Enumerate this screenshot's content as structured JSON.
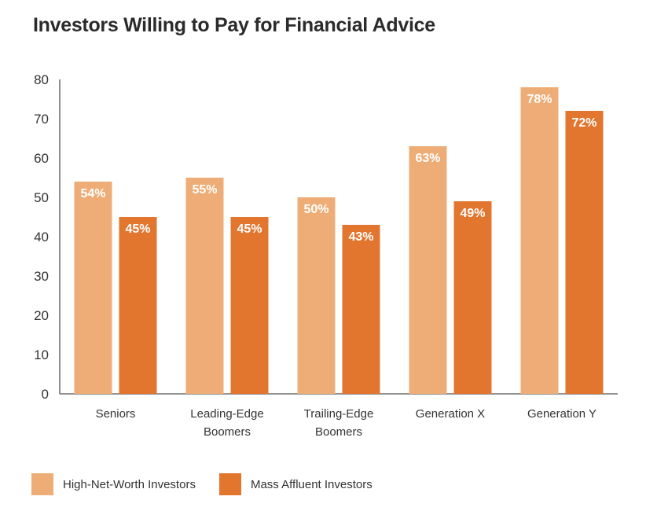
{
  "chart_data": {
    "type": "bar",
    "title": "Investors Willing to Pay for Financial Advice",
    "categories": [
      "Seniors",
      "Leading-Edge Boomers",
      "Trailing-Edge Boomers",
      "Generation X",
      "Generation Y"
    ],
    "category_lines": [
      [
        "Seniors"
      ],
      [
        "Leading-Edge",
        "Boomers"
      ],
      [
        "Trailing-Edge",
        "Boomers"
      ],
      [
        "Generation X"
      ],
      [
        "Generation Y"
      ]
    ],
    "series": [
      {
        "name": "High-Net-Worth Investors",
        "color": "#EEAD76",
        "values": [
          54,
          55,
          50,
          63,
          78
        ],
        "labels": [
          "54%",
          "55%",
          "50%",
          "63%",
          "78%"
        ]
      },
      {
        "name": "Mass Affluent Investors",
        "color": "#E2762F",
        "values": [
          45,
          45,
          43,
          49,
          72
        ],
        "labels": [
          "45%",
          "45%",
          "43%",
          "49%",
          "72%"
        ]
      }
    ],
    "ylim": [
      0,
      80
    ],
    "yticks": [
      "0",
      "10",
      "20",
      "30",
      "40",
      "50",
      "60",
      "70",
      "80"
    ],
    "xlabel": "",
    "ylabel": "",
    "grid": false,
    "legend_position": "bottom-left"
  }
}
